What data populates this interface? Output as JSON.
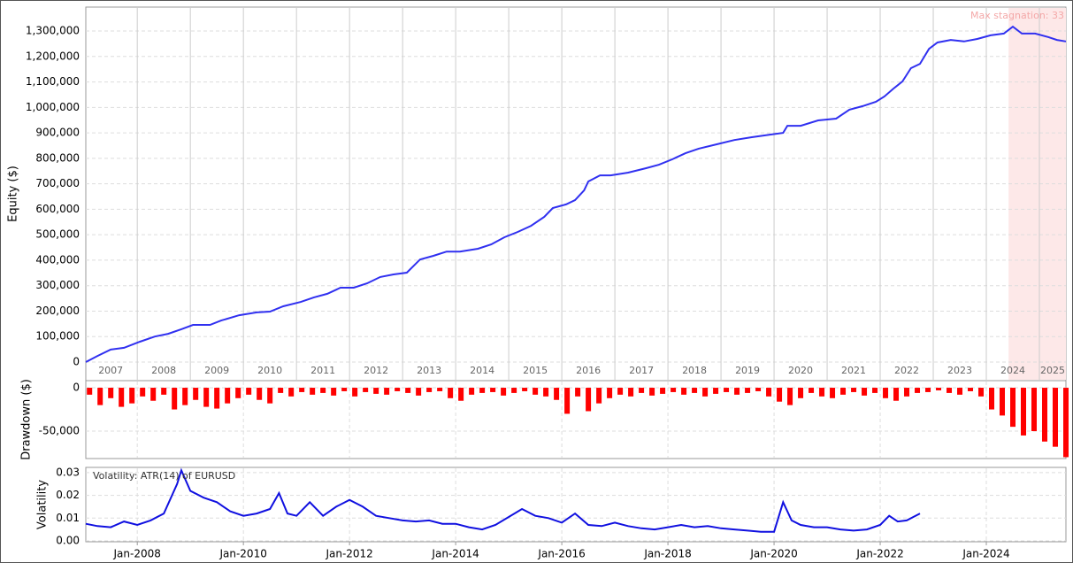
{
  "chart_data": [
    {
      "type": "line",
      "ylabel": "Equity ($)",
      "color": "#3030f0",
      "annotation": "Max stagnation: 33",
      "shade_x": [
        2024.42,
        2025.5
      ],
      "shade_color": "#fde8e8",
      "xlim": [
        2007.03,
        2025.5
      ],
      "ylim": [
        -73000,
        1394000
      ],
      "yticks": [
        0,
        {
          "value": 100000,
          "label": "100,000"
        },
        {
          "value": 200000,
          "label": "200,000"
        },
        {
          "value": 300000,
          "label": "300,000"
        },
        {
          "value": 400000,
          "label": "400,000"
        },
        {
          "value": 500000,
          "label": "500,000"
        },
        {
          "value": 600000,
          "label": "600,000"
        },
        {
          "value": 700000,
          "label": "700,000"
        },
        {
          "value": 800000,
          "label": "800,000"
        },
        {
          "value": 900000,
          "label": "900,000"
        },
        {
          "value": 1000000,
          "label": "1,000,000"
        },
        {
          "value": 1100000,
          "label": "1,100,000"
        },
        {
          "value": 1200000,
          "label": "1,200,000"
        },
        {
          "value": 1300000,
          "label": "1,300,000"
        }
      ],
      "xticks": [
        {
          "value": 2007.5,
          "label": "2007"
        },
        {
          "value": 2008.5,
          "label": "2008"
        },
        {
          "value": 2009.5,
          "label": "2009"
        },
        {
          "value": 2010.5,
          "label": "2010"
        },
        {
          "value": 2011.5,
          "label": "2011"
        },
        {
          "value": 2012.5,
          "label": "2012"
        },
        {
          "value": 2013.5,
          "label": "2013"
        },
        {
          "value": 2014.5,
          "label": "2014"
        },
        {
          "value": 2015.5,
          "label": "2015"
        },
        {
          "value": 2016.5,
          "label": "2016"
        },
        {
          "value": 2017.5,
          "label": "2017"
        },
        {
          "value": 2018.5,
          "label": "2018"
        },
        {
          "value": 2019.5,
          "label": "2019"
        },
        {
          "value": 2020.5,
          "label": "2020"
        },
        {
          "value": 2021.5,
          "label": "2021"
        },
        {
          "value": 2022.5,
          "label": "2022"
        },
        {
          "value": 2023.5,
          "label": "2023"
        },
        {
          "value": 2024.5,
          "label": "2024"
        },
        {
          "value": 2025.25,
          "label": "2025"
        }
      ],
      "xgrid": [
        2008,
        2009,
        2010,
        2011,
        2012,
        2013,
        2014,
        2015,
        2016,
        2017,
        2018,
        2019,
        2020,
        2021,
        2022,
        2023,
        2024,
        2025
      ],
      "x": [
        2007.03,
        2007.25,
        2007.5,
        2007.75,
        2008.05,
        2008.33,
        2008.58,
        2008.83,
        2009.05,
        2009.37,
        2009.58,
        2009.92,
        2010.25,
        2010.5,
        2010.75,
        2011.08,
        2011.33,
        2011.58,
        2011.83,
        2012.08,
        2012.33,
        2012.58,
        2012.83,
        2013.08,
        2013.33,
        2013.58,
        2013.83,
        2014.08,
        2014.42,
        2014.67,
        2014.92,
        2015.17,
        2015.42,
        2015.67,
        2015.83,
        2016.08,
        2016.25,
        2016.42,
        2016.5,
        2016.72,
        2016.92,
        2017.25,
        2017.58,
        2017.83,
        2018.08,
        2018.33,
        2018.58,
        2018.92,
        2019.25,
        2019.58,
        2019.92,
        2020.17,
        2020.25,
        2020.5,
        2020.83,
        2021.17,
        2021.42,
        2021.67,
        2021.92,
        2022.08,
        2022.25,
        2022.42,
        2022.58,
        2022.75,
        2022.92,
        2023.08,
        2023.33,
        2023.58,
        2023.83,
        2024.08,
        2024.33,
        2024.5,
        2024.67,
        2024.92,
        2025.17,
        2025.33,
        2025.5
      ],
      "values": [
        0,
        24000,
        49000,
        56000,
        80000,
        100000,
        111000,
        129000,
        146000,
        146000,
        163000,
        184000,
        195000,
        198000,
        219000,
        236000,
        254000,
        268000,
        292000,
        292000,
        309000,
        334000,
        344000,
        351000,
        403000,
        417000,
        434000,
        434000,
        445000,
        462000,
        490000,
        511000,
        535000,
        570000,
        605000,
        619000,
        636000,
        674000,
        709000,
        733000,
        733000,
        744000,
        761000,
        775000,
        796000,
        820000,
        838000,
        855000,
        872000,
        883000,
        893000,
        900000,
        928000,
        928000,
        949000,
        956000,
        991000,
        1005000,
        1022000,
        1043000,
        1074000,
        1102000,
        1154000,
        1171000,
        1230000,
        1255000,
        1265000,
        1259000,
        1269000,
        1283000,
        1290000,
        1317000,
        1290000,
        1290000,
        1276000,
        1265000,
        1259000
      ]
    },
    {
      "type": "bar",
      "ylabel": "Drawdown ($)",
      "color": "#ff0000",
      "xlim": [
        2007.03,
        2025.5
      ],
      "ylim": [
        -81600,
        8200
      ],
      "yticks": [
        0,
        {
          "value": -50000,
          "label": "-50,000"
        }
      ],
      "xgrid": [
        2008,
        2010,
        2012,
        2014,
        2016,
        2018,
        2020,
        2022,
        2024
      ],
      "x": [
        2007.1,
        2007.3,
        2007.5,
        2007.7,
        2007.9,
        2008.1,
        2008.3,
        2008.5,
        2008.7,
        2008.9,
        2009.1,
        2009.3,
        2009.5,
        2009.7,
        2009.9,
        2010.1,
        2010.3,
        2010.5,
        2010.7,
        2010.9,
        2011.1,
        2011.3,
        2011.5,
        2011.7,
        2011.9,
        2012.1,
        2012.3,
        2012.5,
        2012.7,
        2012.9,
        2013.1,
        2013.3,
        2013.5,
        2013.7,
        2013.9,
        2014.1,
        2014.3,
        2014.5,
        2014.7,
        2014.9,
        2015.1,
        2015.3,
        2015.5,
        2015.7,
        2015.9,
        2016.1,
        2016.3,
        2016.5,
        2016.7,
        2016.9,
        2017.1,
        2017.3,
        2017.5,
        2017.7,
        2017.9,
        2018.1,
        2018.3,
        2018.5,
        2018.7,
        2018.9,
        2019.1,
        2019.3,
        2019.5,
        2019.7,
        2019.9,
        2020.1,
        2020.3,
        2020.5,
        2020.7,
        2020.9,
        2021.1,
        2021.3,
        2021.5,
        2021.7,
        2021.9,
        2022.1,
        2022.3,
        2022.5,
        2022.7,
        2022.9,
        2023.1,
        2023.3,
        2023.5,
        2023.7,
        2023.9,
        2024.1,
        2024.3,
        2024.5,
        2024.7,
        2024.9,
        2025.1,
        2025.3,
        2025.5
      ],
      "values": [
        -8000,
        -20000,
        -12000,
        -22000,
        -18000,
        -10000,
        -15000,
        -8000,
        -25000,
        -20000,
        -14000,
        -22000,
        -24000,
        -18000,
        -12000,
        -8000,
        -14000,
        -18000,
        -6000,
        -10000,
        -5000,
        -8000,
        -6000,
        -9000,
        -4000,
        -10000,
        -5000,
        -7000,
        -8000,
        -4000,
        -6000,
        -9000,
        -5000,
        -4000,
        -12000,
        -15000,
        -8000,
        -6000,
        -5000,
        -9000,
        -6000,
        -4000,
        -8000,
        -10000,
        -14000,
        -30000,
        -10000,
        -27000,
        -18000,
        -12000,
        -8000,
        -10000,
        -6000,
        -9000,
        -7000,
        -5000,
        -8000,
        -6000,
        -10000,
        -7000,
        -5000,
        -8000,
        -6000,
        -4000,
        -10000,
        -16000,
        -20000,
        -12000,
        -6000,
        -10000,
        -12000,
        -8000,
        -5000,
        -9000,
        -6000,
        -12000,
        -15000,
        -10000,
        -6000,
        -5000,
        -3000,
        -6000,
        -8000,
        -4000,
        -10000,
        -25000,
        -32000,
        -45000,
        -55000,
        -50000,
        -62000,
        -68000,
        -80000
      ]
    },
    {
      "type": "line",
      "ylabel": "Volatility",
      "color": "#1010e0",
      "annotation": "Volatility: ATR(14) of EURUSD",
      "xlim": [
        2007.03,
        2025.5
      ],
      "ylim": [
        -0.0004,
        0.0323
      ],
      "yticks": [
        {
          "value": 0,
          "label": "0.00"
        },
        0.01,
        0.02,
        0.03
      ],
      "xticks": [
        {
          "value": 2008,
          "label": "Jan-2008"
        },
        {
          "value": 2010,
          "label": "Jan-2010"
        },
        {
          "value": 2012,
          "label": "Jan-2012"
        },
        {
          "value": 2014,
          "label": "Jan-2014"
        },
        {
          "value": 2016,
          "label": "Jan-2016"
        },
        {
          "value": 2018,
          "label": "Jan-2018"
        },
        {
          "value": 2020,
          "label": "Jan-2020"
        },
        {
          "value": 2022,
          "label": "Jan-2022"
        },
        {
          "value": 2024,
          "label": "Jan-2024"
        }
      ],
      "x": [
        2007.03,
        2007.25,
        2007.5,
        2007.75,
        2008.0,
        2008.25,
        2008.5,
        2008.75,
        2008.83,
        2009.0,
        2009.25,
        2009.5,
        2009.75,
        2010.0,
        2010.25,
        2010.5,
        2010.67,
        2010.83,
        2011.0,
        2011.25,
        2011.5,
        2011.75,
        2012.0,
        2012.25,
        2012.5,
        2012.75,
        2013.0,
        2013.25,
        2013.5,
        2013.75,
        2014.0,
        2014.25,
        2014.5,
        2014.75,
        2015.25,
        2015.5,
        2015.75,
        2016.0,
        2016.25,
        2016.5,
        2016.75,
        2017.0,
        2017.25,
        2017.5,
        2017.75,
        2018.0,
        2018.25,
        2018.5,
        2018.75,
        2019.0,
        2019.25,
        2019.5,
        2019.75,
        2020.0,
        2020.17,
        2020.33,
        2020.5,
        2020.75,
        2021.0,
        2021.25,
        2021.5,
        2021.75,
        2022.0,
        2022.17,
        2022.33,
        2022.5,
        2022.75
      ],
      "values": [
        0.0075,
        0.0065,
        0.006,
        0.0085,
        0.007,
        0.009,
        0.012,
        0.025,
        0.031,
        0.022,
        0.019,
        0.017,
        0.013,
        0.011,
        0.012,
        0.014,
        0.021,
        0.012,
        0.011,
        0.017,
        0.011,
        0.015,
        0.018,
        0.015,
        0.011,
        0.01,
        0.009,
        0.0085,
        0.009,
        0.0075,
        0.0075,
        0.006,
        0.005,
        0.007,
        0.014,
        0.011,
        0.01,
        0.008,
        0.012,
        0.007,
        0.0065,
        0.008,
        0.0065,
        0.0055,
        0.005,
        0.006,
        0.007,
        0.006,
        0.0065,
        0.0055,
        0.005,
        0.0045,
        0.004,
        0.004,
        0.017,
        0.009,
        0.007,
        0.006,
        0.006,
        0.005,
        0.0045,
        0.005,
        0.007,
        0.011,
        0.0085,
        0.009,
        0.012
      ]
    }
  ]
}
